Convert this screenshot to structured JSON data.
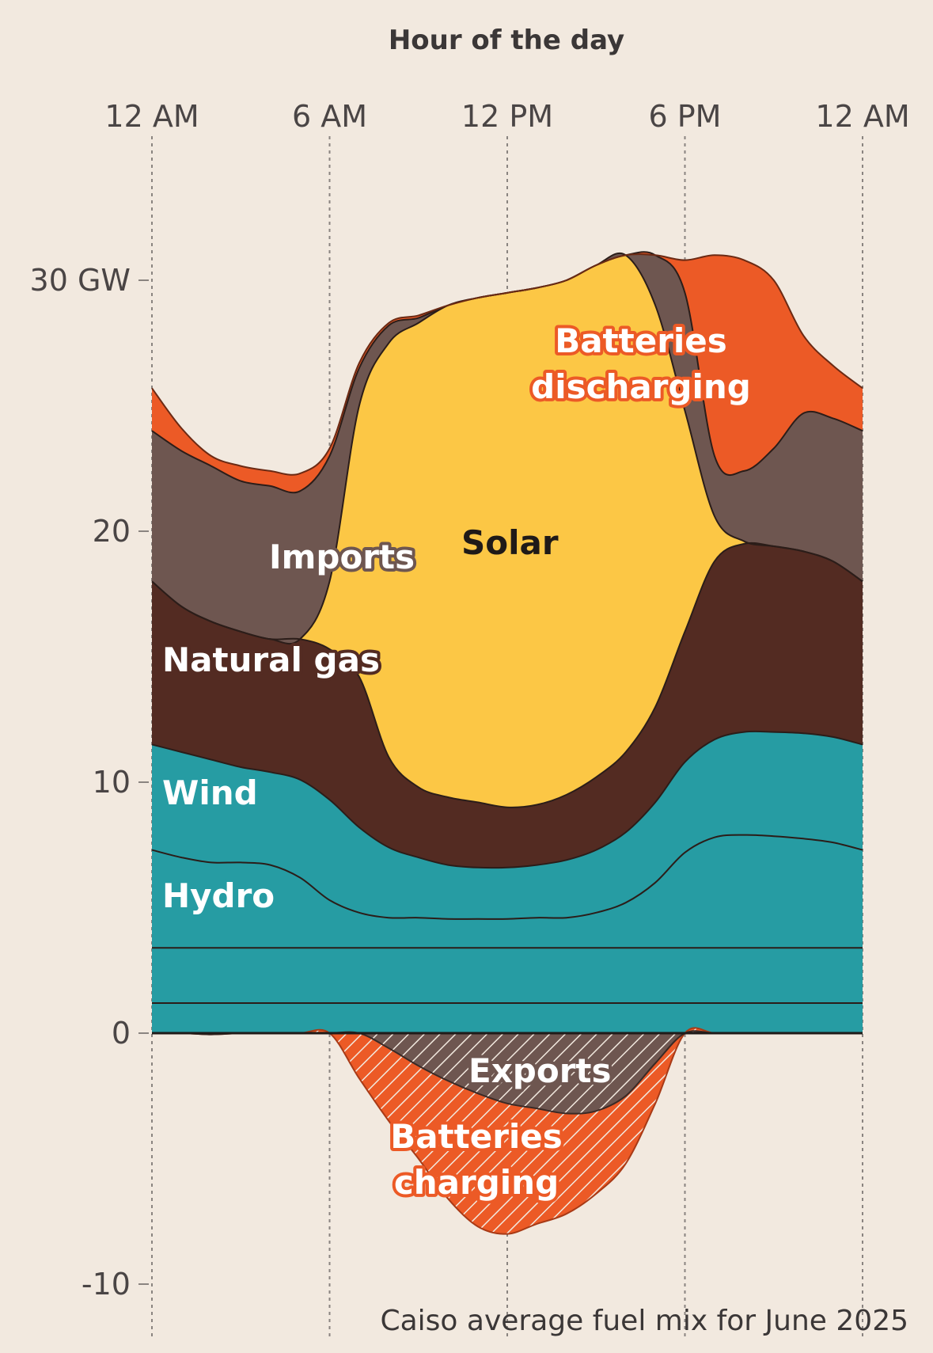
{
  "chart_data": {
    "type": "area",
    "title": "",
    "xlabel": "Hour of the day",
    "caption": "Caiso average fuel mix for June 2025",
    "x_ticks": [
      {
        "hour": 0,
        "label": "12 AM"
      },
      {
        "hour": 6,
        "label": "6 AM"
      },
      {
        "hour": 12,
        "label": "12 PM"
      },
      {
        "hour": 18,
        "label": "6 PM"
      },
      {
        "hour": 24,
        "label": "12 AM"
      }
    ],
    "y_ticks": [
      {
        "value": 30,
        "label": "30 GW"
      },
      {
        "value": 20,
        "label": "20"
      },
      {
        "value": 10,
        "label": "10"
      },
      {
        "value": 0,
        "label": "0"
      },
      {
        "value": -10,
        "label": "-10"
      }
    ],
    "ylim": [
      -10,
      30
    ],
    "xlim": [
      0,
      24
    ],
    "x": [
      0,
      1,
      2,
      3,
      4,
      5,
      6,
      7,
      8,
      9,
      10,
      11,
      12,
      13,
      14,
      15,
      16,
      17,
      18,
      19,
      20,
      21,
      22,
      23,
      24
    ],
    "stack_order_bottom_to_top": [
      "Other base 1",
      "Other base 2",
      "Hydro",
      "Wind",
      "Natural gas",
      "Solar",
      "Imports",
      "Batteries discharging"
    ],
    "series_cumulative_top": {
      "base1": [
        1.2,
        1.2,
        1.2,
        1.2,
        1.2,
        1.2,
        1.2,
        1.2,
        1.2,
        1.2,
        1.2,
        1.2,
        1.2,
        1.2,
        1.2,
        1.2,
        1.2,
        1.2,
        1.2,
        1.2,
        1.2,
        1.2,
        1.2,
        1.2,
        1.2
      ],
      "base2": [
        3.4,
        3.4,
        3.4,
        3.4,
        3.4,
        3.4,
        3.4,
        3.4,
        3.4,
        3.4,
        3.4,
        3.4,
        3.4,
        3.4,
        3.4,
        3.4,
        3.4,
        3.4,
        3.4,
        3.4,
        3.4,
        3.4,
        3.4,
        3.4,
        3.4
      ],
      "hydro": [
        7.3,
        7.0,
        6.8,
        6.8,
        6.7,
        6.2,
        5.3,
        4.8,
        4.6,
        4.6,
        4.55,
        4.55,
        4.55,
        4.6,
        4.6,
        4.8,
        5.2,
        6.0,
        7.2,
        7.8,
        7.9,
        7.85,
        7.75,
        7.6,
        7.3
      ],
      "wind": [
        11.5,
        11.2,
        10.9,
        10.6,
        10.4,
        10.1,
        9.3,
        8.2,
        7.4,
        7.0,
        6.7,
        6.6,
        6.6,
        6.7,
        6.9,
        7.3,
        8.0,
        9.2,
        10.8,
        11.7,
        12.0,
        12.0,
        11.95,
        11.8,
        11.5
      ],
      "gas": [
        18.0,
        17.0,
        16.4,
        16.0,
        15.7,
        15.7,
        15.3,
        14.2,
        11.0,
        9.8,
        9.4,
        9.2,
        9.0,
        9.1,
        9.5,
        10.2,
        11.2,
        13.0,
        16.0,
        18.8,
        19.5,
        19.4,
        19.2,
        18.8,
        18.0
      ],
      "solar": [
        18.0,
        17.0,
        16.4,
        16.0,
        15.7,
        15.7,
        18.0,
        25.0,
        27.5,
        28.3,
        29.0,
        29.3,
        29.5,
        29.7,
        30.0,
        30.6,
        31.0,
        29.0,
        24.8,
        20.6,
        19.6,
        19.4,
        19.2,
        18.8,
        18.0
      ],
      "imports": [
        24.0,
        23.2,
        22.6,
        22.0,
        21.8,
        21.6,
        23.0,
        26.5,
        28.2,
        28.5,
        29.0,
        29.3,
        29.5,
        29.7,
        30.0,
        30.6,
        31.0,
        31.0,
        29.5,
        23.0,
        22.4,
        23.3,
        24.7,
        24.5,
        24.0
      ],
      "batteries_discharging": [
        25.7,
        24.1,
        23.0,
        22.6,
        22.4,
        22.3,
        23.3,
        26.7,
        28.3,
        28.6,
        29.0,
        29.3,
        29.5,
        29.7,
        30.0,
        30.6,
        31.0,
        31.0,
        30.8,
        31.0,
        30.8,
        30.0,
        27.8,
        26.6,
        25.7
      ]
    },
    "series_negative_bottom": {
      "exports": [
        0,
        0,
        -0.05,
        0,
        0,
        0,
        0,
        0,
        -0.6,
        -1.3,
        -1.9,
        -2.4,
        -2.8,
        -3.0,
        -3.2,
        -3.1,
        -2.5,
        -1.2,
        0,
        0,
        0,
        0,
        0,
        0,
        0
      ],
      "batteries_charging": [
        0,
        0,
        -0.05,
        0,
        0,
        0,
        0,
        -1.8,
        -3.5,
        -5.0,
        -6.6,
        -7.7,
        -8.0,
        -7.6,
        -7.2,
        -6.4,
        -5.2,
        -2.8,
        0,
        0,
        0,
        0,
        0,
        0,
        0
      ]
    },
    "labels": {
      "batteries_discharging": [
        "Batteries",
        "discharging"
      ],
      "imports": "Imports",
      "solar": "Solar",
      "gas": "Natural gas",
      "wind": "Wind",
      "hydro": "Hydro",
      "exports": "Exports",
      "batteries_charging": [
        "Batteries",
        "charging"
      ]
    },
    "colors": {
      "base": "#269ca3",
      "hydro": "#269ca3",
      "wind": "#269ca3",
      "gas": "#532b22",
      "solar": "#fcc745",
      "imports": "#6e5650",
      "batteries": "#ec5a26",
      "exports_hatch_bg": "#6e5650",
      "charging_hatch_bg": "#ec5a26",
      "hatch": "#f2e9df",
      "background": "#f2e9df"
    },
    "grid": "vertical-dotted"
  }
}
